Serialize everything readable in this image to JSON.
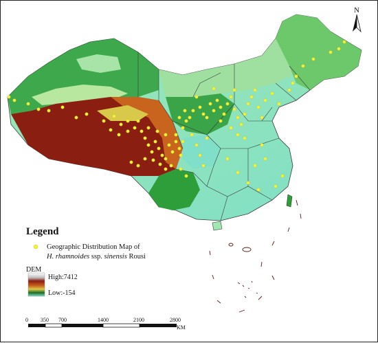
{
  "map": {
    "north_label": "N",
    "colors": {
      "lowland": "#7fdfc8",
      "plain": "#9fe8b0",
      "green": "#2e9e3a",
      "dark_green": "#1f6b2a",
      "yellow": "#d9c94a",
      "orange": "#c8641e",
      "red_brown": "#8a1e10",
      "boundary": "#3a3a3a",
      "point": "#f2f23a"
    }
  },
  "legend": {
    "title": "Legend",
    "point_label_1": "Geographic Distribution Map of",
    "point_label_species": "H. rhamnoides",
    "point_label_ssp": " ssp. ",
    "point_label_subspecies": "sinensis",
    "point_label_author": " Rousi",
    "dem_title": "DEM",
    "dem_high": "High:7412",
    "dem_low": "Low:-154"
  },
  "scale_bar": {
    "ticks": [
      "0",
      "350",
      "700",
      "1400",
      "2100",
      "2800"
    ],
    "unit": "KM"
  }
}
